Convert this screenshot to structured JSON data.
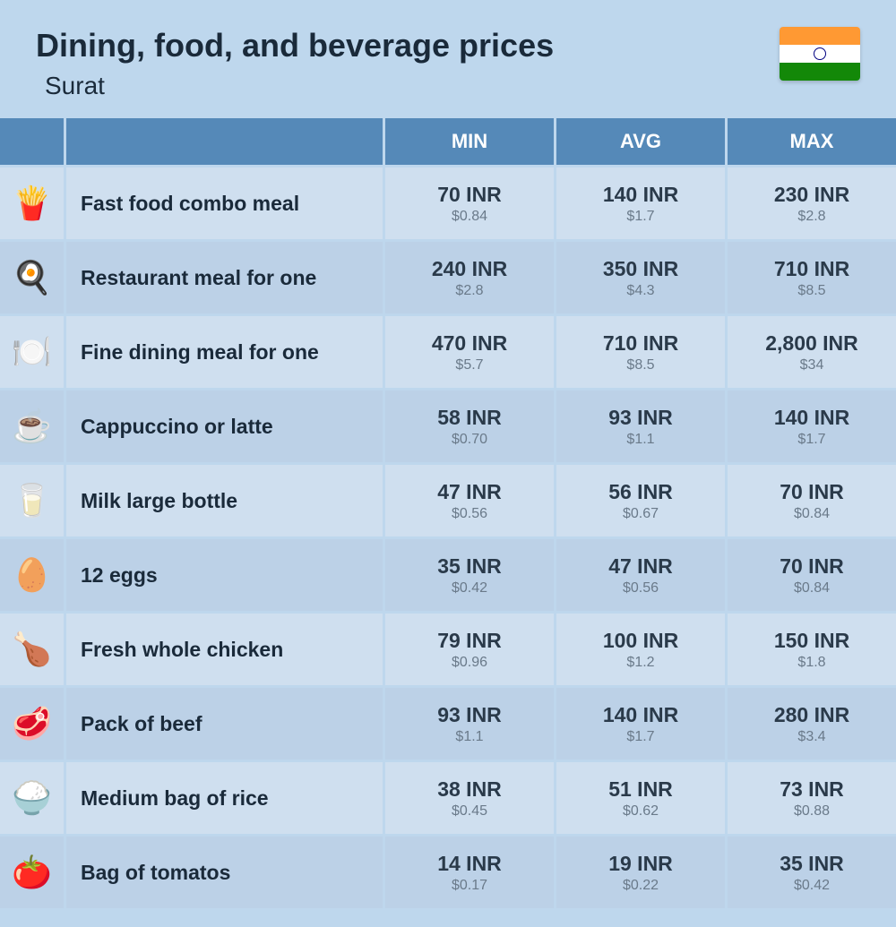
{
  "header": {
    "title": "Dining, food, and beverage prices",
    "location": "Surat",
    "flag": {
      "top": "#ff9933",
      "middle": "#ffffff",
      "bottom": "#138808",
      "chakra": "#000080"
    }
  },
  "columns": {
    "min": "MIN",
    "avg": "AVG",
    "max": "MAX"
  },
  "styling": {
    "background": "#bed7ed",
    "header_bg": "#5589b8",
    "header_text": "#ffffff",
    "row_odd_bg": "#cfdfef",
    "row_even_bg": "#bcd1e7",
    "title_color": "#1a2a3a",
    "price_main_color": "#2a3a4a",
    "price_sub_color": "#6a7a8a",
    "title_fontsize": 36,
    "label_fontsize": 23,
    "price_fontsize": 23,
    "sub_fontsize": 16
  },
  "rows": [
    {
      "icon": "fast-food-icon",
      "label": "Fast food combo meal",
      "min": {
        "inr": "70 INR",
        "usd": "$0.84"
      },
      "avg": {
        "inr": "140 INR",
        "usd": "$1.7"
      },
      "max": {
        "inr": "230 INR",
        "usd": "$2.8"
      }
    },
    {
      "icon": "restaurant-meal-icon",
      "label": "Restaurant meal for one",
      "min": {
        "inr": "240 INR",
        "usd": "$2.8"
      },
      "avg": {
        "inr": "350 INR",
        "usd": "$4.3"
      },
      "max": {
        "inr": "710 INR",
        "usd": "$8.5"
      }
    },
    {
      "icon": "fine-dining-icon",
      "label": "Fine dining meal for one",
      "min": {
        "inr": "470 INR",
        "usd": "$5.7"
      },
      "avg": {
        "inr": "710 INR",
        "usd": "$8.5"
      },
      "max": {
        "inr": "2,800 INR",
        "usd": "$34"
      }
    },
    {
      "icon": "coffee-icon",
      "label": "Cappuccino or latte",
      "min": {
        "inr": "58 INR",
        "usd": "$0.70"
      },
      "avg": {
        "inr": "93 INR",
        "usd": "$1.1"
      },
      "max": {
        "inr": "140 INR",
        "usd": "$1.7"
      }
    },
    {
      "icon": "milk-icon",
      "label": "Milk large bottle",
      "min": {
        "inr": "47 INR",
        "usd": "$0.56"
      },
      "avg": {
        "inr": "56 INR",
        "usd": "$0.67"
      },
      "max": {
        "inr": "70 INR",
        "usd": "$0.84"
      }
    },
    {
      "icon": "eggs-icon",
      "label": "12 eggs",
      "min": {
        "inr": "35 INR",
        "usd": "$0.42"
      },
      "avg": {
        "inr": "47 INR",
        "usd": "$0.56"
      },
      "max": {
        "inr": "70 INR",
        "usd": "$0.84"
      }
    },
    {
      "icon": "chicken-icon",
      "label": "Fresh whole chicken",
      "min": {
        "inr": "79 INR",
        "usd": "$0.96"
      },
      "avg": {
        "inr": "100 INR",
        "usd": "$1.2"
      },
      "max": {
        "inr": "150 INR",
        "usd": "$1.8"
      }
    },
    {
      "icon": "beef-icon",
      "label": "Pack of beef",
      "min": {
        "inr": "93 INR",
        "usd": "$1.1"
      },
      "avg": {
        "inr": "140 INR",
        "usd": "$1.7"
      },
      "max": {
        "inr": "280 INR",
        "usd": "$3.4"
      }
    },
    {
      "icon": "rice-icon",
      "label": "Medium bag of rice",
      "min": {
        "inr": "38 INR",
        "usd": "$0.45"
      },
      "avg": {
        "inr": "51 INR",
        "usd": "$0.62"
      },
      "max": {
        "inr": "73 INR",
        "usd": "$0.88"
      }
    },
    {
      "icon": "tomato-icon",
      "label": "Bag of tomatos",
      "min": {
        "inr": "14 INR",
        "usd": "$0.17"
      },
      "avg": {
        "inr": "19 INR",
        "usd": "$0.22"
      },
      "max": {
        "inr": "35 INR",
        "usd": "$0.42"
      }
    }
  ],
  "icons": {
    "fast-food-icon": "🍟",
    "restaurant-meal-icon": "🍳",
    "fine-dining-icon": "🍽️",
    "coffee-icon": "☕",
    "milk-icon": "🥛",
    "eggs-icon": "🥚",
    "chicken-icon": "🍗",
    "beef-icon": "🥩",
    "rice-icon": "🍚",
    "tomato-icon": "🍅"
  }
}
